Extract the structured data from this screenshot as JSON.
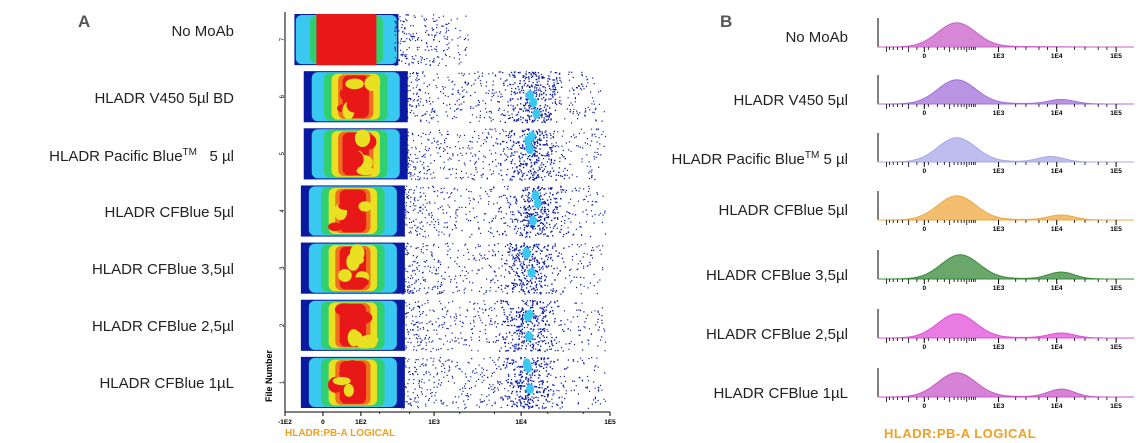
{
  "panel_a": {
    "letter": "A"
  },
  "panel_b": {
    "letter": "B"
  },
  "chart_data": [
    {
      "type": "scatter",
      "subtype": "flow-cytometry-density-dot-plot",
      "panel": "A",
      "xlabel": "HLADR:PB-A LOGICAL",
      "ylabel": "File Number",
      "x_scale": "logicle",
      "x_ticks": [
        "-1E2",
        "0",
        "1E2",
        "1E3",
        "1E4",
        "1E5"
      ],
      "y_ticks": [
        "1",
        "2",
        "3",
        "4",
        "5",
        "6",
        "7"
      ],
      "density_colors": [
        "#0a1aa0",
        "#38c8f0",
        "#30d070",
        "#e8e020",
        "#f07020",
        "#e81818"
      ],
      "files": [
        {
          "file": 7,
          "label": "No MoAb",
          "negative_center": 50,
          "positive_population": false
        },
        {
          "file": 6,
          "label": "HLADR V450 5µl BD",
          "negative_center": 80,
          "positive_population": true,
          "positive_center": 14000
        },
        {
          "file": 5,
          "label_main": "HLADR Pacific Blue",
          "label_sup": "TM",
          "label_tail": "   5 µl",
          "negative_center": 80,
          "positive_population": true,
          "positive_center": 13000
        },
        {
          "file": 4,
          "label": "HLADR CFBlue 5µl",
          "negative_center": 70,
          "positive_population": true,
          "positive_center": 14000
        },
        {
          "file": 3,
          "label": "HLADR CFBlue 3,5µl",
          "negative_center": 70,
          "positive_population": true,
          "positive_center": 12000
        },
        {
          "file": 2,
          "label": "HLADR CFBlue 2,5µl",
          "negative_center": 70,
          "positive_population": true,
          "positive_center": 12000
        },
        {
          "file": 1,
          "label": "HLADR CFBlue 1µL",
          "negative_center": 70,
          "positive_population": true,
          "positive_center": 12000
        }
      ]
    },
    {
      "type": "area",
      "subtype": "flow-cytometry-histogram-overlay",
      "panel": "B",
      "xlabel": "HLADR:PB-A LOGICAL",
      "x_scale": "logicle",
      "x_ticks": [
        "0",
        "1E3",
        "1E4",
        "1E5"
      ],
      "series": [
        {
          "name": "No MoAb",
          "color": "#c860c8",
          "negative_peak_x": 150,
          "negative_height": 1.0,
          "positive_peak_x": 12000,
          "positive_height": 0.0
        },
        {
          "name": "HLADR V450 5µl",
          "color": "#a070d8",
          "negative_peak_x": 150,
          "negative_height": 1.0,
          "positive_peak_x": 12000,
          "positive_height": 0.18
        },
        {
          "name_main": "HLADR Pacific Blue",
          "name_sup": "TM",
          "name_tail": " 5 µl",
          "color": "#a8a8e8",
          "negative_peak_x": 150,
          "negative_height": 1.0,
          "positive_peak_x": 8000,
          "positive_height": 0.22
        },
        {
          "name": "HLADR CFBlue 5µl",
          "color": "#f0a840",
          "negative_peak_x": 150,
          "negative_height": 1.0,
          "positive_peak_x": 12000,
          "positive_height": 0.2
        },
        {
          "name": "HLADR CFBlue 3,5µl",
          "color": "#3a8a3a",
          "negative_peak_x": 180,
          "negative_height": 1.0,
          "positive_peak_x": 12000,
          "positive_height": 0.28
        },
        {
          "name": "HLADR CFBlue 2,5µl",
          "color": "#e050d8",
          "negative_peak_x": 150,
          "negative_height": 1.0,
          "positive_peak_x": 12000,
          "positive_height": 0.2
        },
        {
          "name": "HLADR CFBlue 1µL",
          "color": "#c858c8",
          "negative_peak_x": 150,
          "negative_height": 1.0,
          "positive_peak_x": 12000,
          "positive_height": 0.32
        }
      ]
    }
  ]
}
